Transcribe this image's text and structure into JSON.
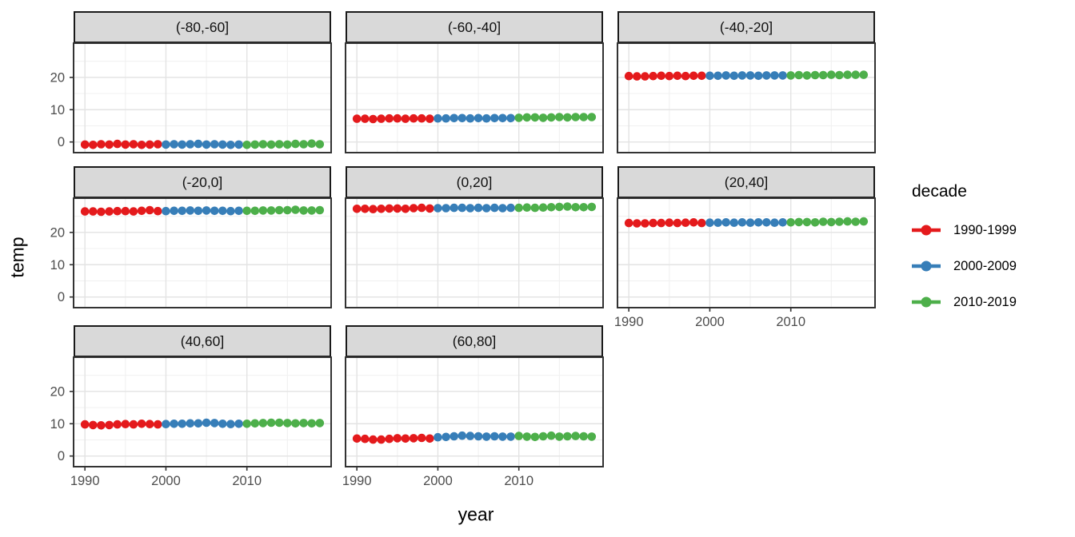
{
  "chart_data": {
    "type": "scatter",
    "title": "",
    "xlabel": "year",
    "ylabel": "temp",
    "grid": true,
    "xlim": [
      1988.6,
      2020.4
    ],
    "ylim": [
      -3.3,
      30.6
    ],
    "x_ticks": [
      1990,
      2000,
      2010
    ],
    "y_ticks": [
      0,
      10,
      20
    ],
    "x_minor_ticks": [
      1995,
      2005,
      2015
    ],
    "y_minor_ticks": [
      5,
      15,
      25
    ],
    "years": [
      1990,
      1991,
      1992,
      1993,
      1994,
      1995,
      1996,
      1997,
      1998,
      1999,
      2000,
      2001,
      2002,
      2003,
      2004,
      2005,
      2006,
      2007,
      2008,
      2009,
      2010,
      2011,
      2012,
      2013,
      2014,
      2015,
      2016,
      2017,
      2018,
      2019
    ],
    "legend": {
      "title": "decade",
      "position": "right",
      "entries": [
        {
          "label": "1990-1999",
          "color": "#e41a1c",
          "year_start": 1990,
          "year_end": 1999
        },
        {
          "label": "2000-2009",
          "color": "#377eb8",
          "year_start": 2000,
          "year_end": 2009
        },
        {
          "label": "2010-2019",
          "color": "#4daf4a",
          "year_start": 2010,
          "year_end": 2019
        }
      ]
    },
    "facets": [
      {
        "label": "(-80,-60]",
        "values": [
          -0.8,
          -0.9,
          -0.7,
          -0.8,
          -0.6,
          -0.8,
          -0.7,
          -0.9,
          -0.8,
          -0.7,
          -0.8,
          -0.7,
          -0.8,
          -0.7,
          -0.6,
          -0.8,
          -0.7,
          -0.8,
          -0.9,
          -0.8,
          -0.9,
          -0.8,
          -0.7,
          -0.8,
          -0.7,
          -0.8,
          -0.6,
          -0.7,
          -0.5,
          -0.7
        ]
      },
      {
        "label": "(-60,-40]",
        "values": [
          7.2,
          7.2,
          7.1,
          7.2,
          7.3,
          7.3,
          7.2,
          7.3,
          7.3,
          7.2,
          7.3,
          7.3,
          7.4,
          7.4,
          7.3,
          7.4,
          7.3,
          7.4,
          7.4,
          7.4,
          7.5,
          7.6,
          7.6,
          7.5,
          7.6,
          7.7,
          7.6,
          7.7,
          7.7,
          7.7
        ]
      },
      {
        "label": "(-40,-20]",
        "values": [
          20.4,
          20.3,
          20.3,
          20.4,
          20.5,
          20.4,
          20.5,
          20.4,
          20.5,
          20.5,
          20.5,
          20.5,
          20.6,
          20.5,
          20.6,
          20.6,
          20.5,
          20.6,
          20.6,
          20.6,
          20.6,
          20.7,
          20.6,
          20.7,
          20.7,
          20.8,
          20.7,
          20.8,
          20.8,
          20.8
        ]
      },
      {
        "label": "(-20,0]",
        "values": [
          26.5,
          26.5,
          26.4,
          26.5,
          26.6,
          26.6,
          26.5,
          26.7,
          26.9,
          26.6,
          26.6,
          26.7,
          26.7,
          26.8,
          26.7,
          26.8,
          26.7,
          26.7,
          26.6,
          26.7,
          26.7,
          26.7,
          26.8,
          26.8,
          26.9,
          26.9,
          27.0,
          26.8,
          26.8,
          26.9
        ]
      },
      {
        "label": "(0,20]",
        "values": [
          27.3,
          27.3,
          27.2,
          27.3,
          27.4,
          27.4,
          27.3,
          27.5,
          27.6,
          27.4,
          27.5,
          27.5,
          27.6,
          27.6,
          27.5,
          27.6,
          27.5,
          27.6,
          27.5,
          27.6,
          27.6,
          27.7,
          27.6,
          27.7,
          27.8,
          27.9,
          28.0,
          27.8,
          27.8,
          27.9
        ]
      },
      {
        "label": "(20,40]",
        "values": [
          22.9,
          22.8,
          22.8,
          22.9,
          22.9,
          23.0,
          22.9,
          23.0,
          23.1,
          22.9,
          23.0,
          23.0,
          23.1,
          23.0,
          23.1,
          23.0,
          23.1,
          23.1,
          23.0,
          23.1,
          23.1,
          23.2,
          23.2,
          23.1,
          23.3,
          23.2,
          23.3,
          23.4,
          23.3,
          23.4
        ]
      },
      {
        "label": "(40,60]",
        "values": [
          9.8,
          9.6,
          9.5,
          9.6,
          9.8,
          9.9,
          9.8,
          10.0,
          9.9,
          9.8,
          9.9,
          10.0,
          10.0,
          10.1,
          10.1,
          10.3,
          10.2,
          10.0,
          9.9,
          10.0,
          10.0,
          10.1,
          10.2,
          10.3,
          10.3,
          10.2,
          10.1,
          10.2,
          10.1,
          10.2
        ]
      },
      {
        "label": "(60,80]",
        "values": [
          5.4,
          5.3,
          5.1,
          5.1,
          5.3,
          5.5,
          5.4,
          5.5,
          5.6,
          5.4,
          5.8,
          5.9,
          6.1,
          6.3,
          6.2,
          6.1,
          6.0,
          6.1,
          6.0,
          6.0,
          6.2,
          6.0,
          5.9,
          6.1,
          6.3,
          6.0,
          6.1,
          6.2,
          6.1,
          6.0
        ]
      }
    ],
    "colors": {
      "strip_fill": "#d9d9d9",
      "strip_border": "#1a1a1a",
      "panel_border": "#333333",
      "panel_background": "#ffffff",
      "grid_major": "#e3e3e3",
      "grid_minor": "#f0f0f0",
      "axis_text": "#4d4d4d",
      "tick_mark": "#333333"
    }
  }
}
